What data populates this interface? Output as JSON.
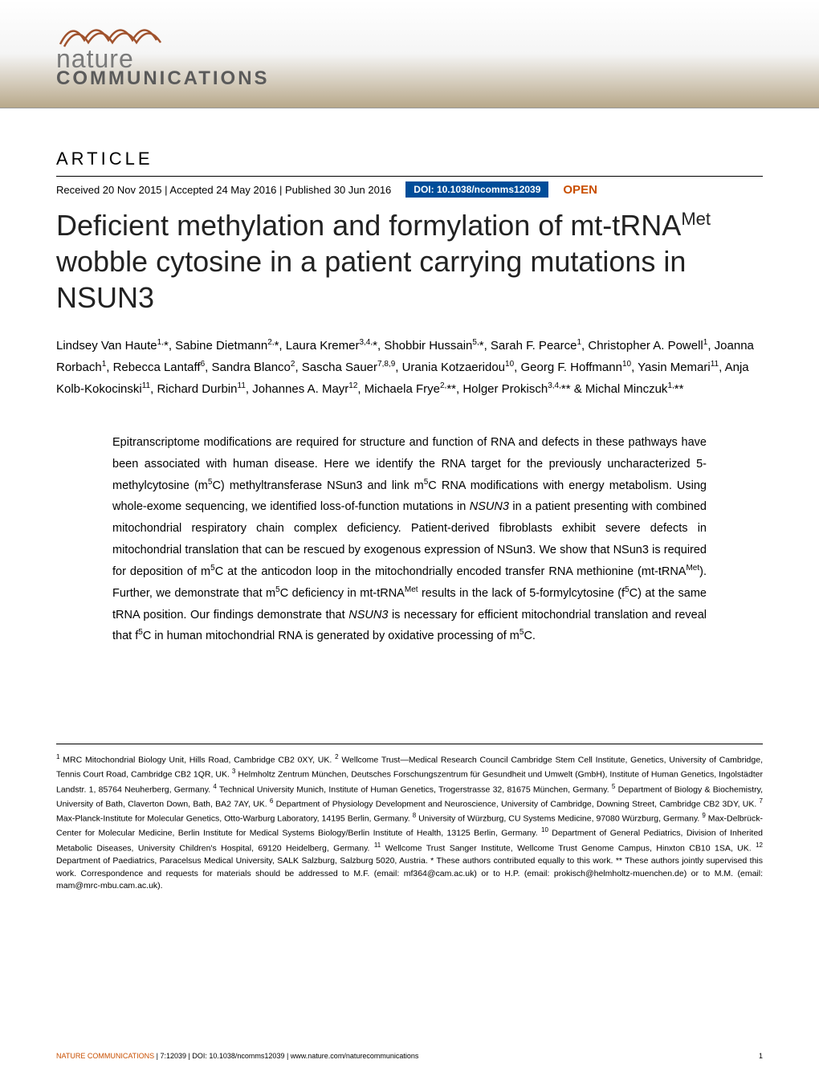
{
  "journal": {
    "logo_line1": "nature",
    "logo_line2": "COMMUNICATIONS"
  },
  "header": {
    "article_label": "ARTICLE",
    "received": "Received 20 Nov 2015",
    "accepted": "Accepted 24 May 2016",
    "published": "Published 30 Jun 2016",
    "doi": "DOI: 10.1038/ncomms12039",
    "open_label": "OPEN"
  },
  "title_parts": {
    "p1": "Deficient methylation and formylation of mt-tRNA",
    "sup1": "Met",
    "p2": " wobble cytosine in a patient carrying mutations in NSUN3"
  },
  "authors_html": "Lindsey Van Haute<sup>1,</sup>*, Sabine Dietmann<sup>2,</sup>*, Laura Kremer<sup>3,4,</sup>*, Shobbir Hussain<sup>5,</sup>*, Sarah F. Pearce<sup>1</sup>, Christopher A. Powell<sup>1</sup>, Joanna Rorbach<sup>1</sup>, Rebecca Lantaff<sup>6</sup>, Sandra Blanco<sup>2</sup>, Sascha Sauer<sup>7,8,9</sup>, Urania Kotzaeridou<sup>10</sup>, Georg F. Hoffmann<sup>10</sup>, Yasin Memari<sup>11</sup>, Anja Kolb-Kokocinski<sup>11</sup>, Richard Durbin<sup>11</sup>, Johannes A. Mayr<sup>12</sup>, Michaela Frye<sup>2,</sup>**, Holger Prokisch<sup>3,4,</sup>** & Michal Minczuk<sup>1,</sup>**",
  "abstract_html": "Epitranscriptome modifications are required for structure and function of RNA and defects in these pathways have been associated with human disease. Here we identify the RNA target for the previously uncharacterized 5-methylcytosine (m<sup>5</sup>C) methyltransferase NSun3 and link m<sup>5</sup>C RNA modifications with energy metabolism. Using whole-exome sequencing, we identified loss-of-function mutations in <i>NSUN3</i> in a patient presenting with combined mitochondrial respiratory chain complex deficiency. Patient-derived fibroblasts exhibit severe defects in mitochondrial translation that can be rescued by exogenous expression of NSun3. We show that NSun3 is required for deposition of m<sup>5</sup>C at the anticodon loop in the mitochondrially encoded transfer RNA methionine (mt-tRNA<sup>Met</sup>). Further, we demonstrate that m<sup>5</sup>C deficiency in mt-tRNA<sup>Met</sup> results in the lack of 5-formylcytosine (f<sup>5</sup>C) at the same tRNA position. Our findings demonstrate that <i>NSUN3</i> is necessary for efficient mitochondrial translation and reveal that f<sup>5</sup>C in human mitochondrial RNA is generated by oxidative processing of m<sup>5</sup>C.",
  "affiliations_html": "<sup>1</sup> MRC Mitochondrial Biology Unit, Hills Road, Cambridge CB2 0XY, UK. <sup>2</sup> Wellcome Trust—Medical Research Council Cambridge Stem Cell Institute, Genetics, University of Cambridge, Tennis Court Road, Cambridge CB2 1QR, UK. <sup>3</sup> Helmholtz Zentrum München, Deutsches Forschungszentrum für Gesundheit und Umwelt (GmbH), Institute of Human Genetics, Ingolstädter Landstr. 1, 85764 Neuherberg, Germany. <sup>4</sup> Technical University Munich, Institute of Human Genetics, Trogerstrasse 32, 81675 München, Germany. <sup>5</sup> Department of Biology & Biochemistry, University of Bath, Claverton Down, Bath, BA2 7AY, UK. <sup>6</sup> Department of Physiology Development and Neuroscience, University of Cambridge, Downing Street, Cambridge CB2 3DY, UK. <sup>7</sup> Max-Planck-Institute for Molecular Genetics, Otto-Warburg Laboratory, 14195 Berlin, Germany. <sup>8</sup> University of Würzburg, CU Systems Medicine, 97080 Würzburg, Germany. <sup>9</sup> Max-Delbrück-Center for Molecular Medicine, Berlin Institute for Medical Systems Biology/Berlin Institute of Health, 13125 Berlin, Germany. <sup>10</sup> Department of General Pediatrics, Division of Inherited Metabolic Diseases, University Children's Hospital, 69120 Heidelberg, Germany. <sup>11</sup> Wellcome Trust Sanger Institute, Wellcome Trust Genome Campus, Hinxton CB10 1SA, UK. <sup>12</sup> Department of Paediatrics, Paracelsus Medical University, SALK Salzburg, Salzburg 5020, Austria. * These authors contributed equally to this work. ** These authors jointly supervised this work. Correspondence and requests for materials should be addressed to M.F. (email: mf364@cam.ac.uk) or to H.P. (email: prokisch@helmholtz-muenchen.de) or to M.M. (email: mam@mrc-mbu.cam.ac.uk).",
  "footer": {
    "journal": "NATURE COMMUNICATIONS",
    "citation": " | 7:12039 | DOI: 10.1038/ncomms12039 | www.nature.com/naturecommunications",
    "page": "1"
  },
  "colors": {
    "doi_bg": "#004d99",
    "open_color": "#c94f00",
    "logo_wave": "#a0522d",
    "text": "#000000",
    "bg": "#ffffff"
  },
  "typography": {
    "title_size_pt": 36,
    "body_size_pt": 14.5,
    "authors_size_pt": 15,
    "affil_size_pt": 10.5,
    "footer_size_pt": 9
  }
}
